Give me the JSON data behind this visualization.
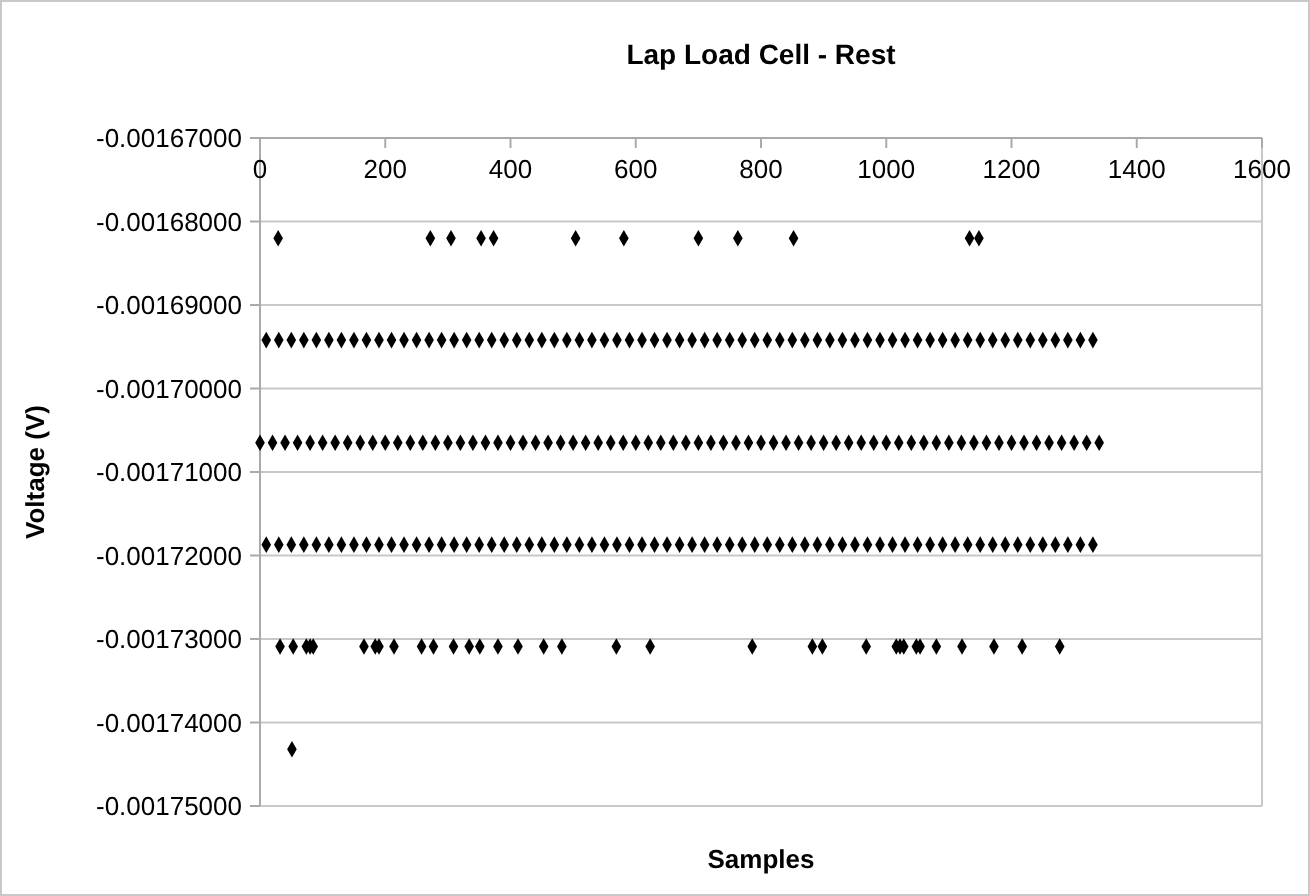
{
  "chart_data": {
    "type": "scatter",
    "title": "Lap Load Cell - Rest",
    "xlabel": "Samples",
    "ylabel": "Voltage (V)",
    "marker": "diamond",
    "grid": "y",
    "xlim": [
      0,
      1600
    ],
    "xticks": [
      0,
      200,
      400,
      600,
      800,
      1000,
      1200,
      1400,
      1600
    ],
    "ylim": [
      -0.00175,
      -0.00167
    ],
    "yticks": [
      {
        "value": -0.00167,
        "label": "-0.00167000"
      },
      {
        "value": -0.00168,
        "label": "-0.00168000"
      },
      {
        "value": -0.00169,
        "label": "-0.00169000"
      },
      {
        "value": -0.0017,
        "label": "-0.00170000"
      },
      {
        "value": -0.00171,
        "label": "-0.00171000"
      },
      {
        "value": -0.00172,
        "label": "-0.00172000"
      },
      {
        "value": -0.00173,
        "label": "-0.00173000"
      },
      {
        "value": -0.00174,
        "label": "-0.00174000"
      },
      {
        "value": -0.00175,
        "label": "-0.00175000"
      }
    ],
    "series": [
      {
        "color": "#000000",
        "x": [
          29,
          272,
          305,
          353,
          373,
          504,
          581,
          700,
          763,
          852,
          1133,
          1148
        ],
        "values": [
          -0.001682,
          -0.001682,
          -0.001682,
          -0.001682,
          -0.001682,
          -0.001682,
          -0.001682,
          -0.001682,
          -0.001682,
          -0.001682,
          -0.001682,
          -0.001682
        ]
      },
      {
        "color": "#000000",
        "x": [
          10,
          30,
          50,
          70,
          90,
          110,
          130,
          150,
          170,
          190,
          210,
          230,
          250,
          270,
          290,
          310,
          330,
          350,
          370,
          390,
          410,
          430,
          450,
          470,
          490,
          510,
          530,
          550,
          570,
          590,
          610,
          630,
          650,
          670,
          690,
          710,
          730,
          750,
          770,
          790,
          810,
          830,
          850,
          870,
          890,
          910,
          930,
          950,
          970,
          990,
          1010,
          1030,
          1050,
          1070,
          1090,
          1110,
          1130,
          1150,
          1170,
          1190,
          1210,
          1230,
          1250,
          1270,
          1290,
          1310,
          1330
        ],
        "values": [
          -0.0016942,
          -0.0016942,
          -0.0016942,
          -0.0016942,
          -0.0016942,
          -0.0016942,
          -0.0016942,
          -0.0016942,
          -0.0016942,
          -0.0016942,
          -0.0016942,
          -0.0016942,
          -0.0016942,
          -0.0016942,
          -0.0016942,
          -0.0016942,
          -0.0016942,
          -0.0016942,
          -0.0016942,
          -0.0016942,
          -0.0016942,
          -0.0016942,
          -0.0016942,
          -0.0016942,
          -0.0016942,
          -0.0016942,
          -0.0016942,
          -0.0016942,
          -0.0016942,
          -0.0016942,
          -0.0016942,
          -0.0016942,
          -0.0016942,
          -0.0016942,
          -0.0016942,
          -0.0016942,
          -0.0016942,
          -0.0016942,
          -0.0016942,
          -0.0016942,
          -0.0016942,
          -0.0016942,
          -0.0016942,
          -0.0016942,
          -0.0016942,
          -0.0016942,
          -0.0016942,
          -0.0016942,
          -0.0016942,
          -0.0016942,
          -0.0016942,
          -0.0016942,
          -0.0016942,
          -0.0016942,
          -0.0016942,
          -0.0016942,
          -0.0016942,
          -0.0016942,
          -0.0016942,
          -0.0016942,
          -0.0016942,
          -0.0016942,
          -0.0016942,
          -0.0016942,
          -0.0016942,
          -0.0016942,
          -0.0016942
        ]
      },
      {
        "color": "#000000",
        "x": [
          0,
          20,
          40,
          60,
          80,
          100,
          120,
          140,
          160,
          180,
          200,
          220,
          240,
          260,
          280,
          300,
          320,
          340,
          360,
          380,
          400,
          420,
          440,
          460,
          480,
          500,
          520,
          540,
          560,
          580,
          600,
          620,
          640,
          660,
          680,
          700,
          720,
          740,
          760,
          780,
          800,
          820,
          840,
          860,
          880,
          900,
          920,
          940,
          960,
          980,
          1000,
          1020,
          1040,
          1060,
          1080,
          1100,
          1120,
          1140,
          1160,
          1180,
          1200,
          1220,
          1240,
          1260,
          1280,
          1300,
          1320,
          1340
        ],
        "values": [
          -0.0017065,
          -0.0017065,
          -0.0017065,
          -0.0017065,
          -0.0017065,
          -0.0017065,
          -0.0017065,
          -0.0017065,
          -0.0017065,
          -0.0017065,
          -0.0017065,
          -0.0017065,
          -0.0017065,
          -0.0017065,
          -0.0017065,
          -0.0017065,
          -0.0017065,
          -0.0017065,
          -0.0017065,
          -0.0017065,
          -0.0017065,
          -0.0017065,
          -0.0017065,
          -0.0017065,
          -0.0017065,
          -0.0017065,
          -0.0017065,
          -0.0017065,
          -0.0017065,
          -0.0017065,
          -0.0017065,
          -0.0017065,
          -0.0017065,
          -0.0017065,
          -0.0017065,
          -0.0017065,
          -0.0017065,
          -0.0017065,
          -0.0017065,
          -0.0017065,
          -0.0017065,
          -0.0017065,
          -0.0017065,
          -0.0017065,
          -0.0017065,
          -0.0017065,
          -0.0017065,
          -0.0017065,
          -0.0017065,
          -0.0017065,
          -0.0017065,
          -0.0017065,
          -0.0017065,
          -0.0017065,
          -0.0017065,
          -0.0017065,
          -0.0017065,
          -0.0017065,
          -0.0017065,
          -0.0017065,
          -0.0017065,
          -0.0017065,
          -0.0017065,
          -0.0017065,
          -0.0017065,
          -0.0017065,
          -0.0017065,
          -0.0017065
        ]
      },
      {
        "color": "#000000",
        "x": [
          10,
          30,
          50,
          70,
          90,
          110,
          130,
          150,
          170,
          190,
          210,
          230,
          250,
          270,
          290,
          310,
          330,
          350,
          370,
          390,
          410,
          430,
          450,
          470,
          490,
          510,
          530,
          550,
          570,
          590,
          610,
          630,
          650,
          670,
          690,
          710,
          730,
          750,
          770,
          790,
          810,
          830,
          850,
          870,
          890,
          910,
          930,
          950,
          970,
          990,
          1010,
          1030,
          1050,
          1070,
          1090,
          1110,
          1130,
          1150,
          1170,
          1190,
          1210,
          1230,
          1250,
          1270,
          1290,
          1310,
          1330
        ],
        "values": [
          -0.0017187,
          -0.0017187,
          -0.0017187,
          -0.0017187,
          -0.0017187,
          -0.0017187,
          -0.0017187,
          -0.0017187,
          -0.0017187,
          -0.0017187,
          -0.0017187,
          -0.0017187,
          -0.0017187,
          -0.0017187,
          -0.0017187,
          -0.0017187,
          -0.0017187,
          -0.0017187,
          -0.0017187,
          -0.0017187,
          -0.0017187,
          -0.0017187,
          -0.0017187,
          -0.0017187,
          -0.0017187,
          -0.0017187,
          -0.0017187,
          -0.0017187,
          -0.0017187,
          -0.0017187,
          -0.0017187,
          -0.0017187,
          -0.0017187,
          -0.0017187,
          -0.0017187,
          -0.0017187,
          -0.0017187,
          -0.0017187,
          -0.0017187,
          -0.0017187,
          -0.0017187,
          -0.0017187,
          -0.0017187,
          -0.0017187,
          -0.0017187,
          -0.0017187,
          -0.0017187,
          -0.0017187,
          -0.0017187,
          -0.0017187,
          -0.0017187,
          -0.0017187,
          -0.0017187,
          -0.0017187,
          -0.0017187,
          -0.0017187,
          -0.0017187,
          -0.0017187,
          -0.0017187,
          -0.0017187,
          -0.0017187,
          -0.0017187,
          -0.0017187,
          -0.0017187,
          -0.0017187,
          -0.0017187,
          -0.0017187
        ]
      },
      {
        "color": "#000000",
        "x": [
          32,
          53,
          74,
          80,
          85,
          166,
          184,
          190,
          214,
          258,
          277,
          309,
          334,
          351,
          380,
          412,
          453,
          482,
          569,
          623,
          786,
          882,
          898,
          968,
          1016,
          1022,
          1028,
          1048,
          1054,
          1080,
          1121,
          1172,
          1217,
          1277
        ],
        "values": [
          -0.0017309,
          -0.0017309,
          -0.0017309,
          -0.0017309,
          -0.0017309,
          -0.0017309,
          -0.0017309,
          -0.0017309,
          -0.0017309,
          -0.0017309,
          -0.0017309,
          -0.0017309,
          -0.0017309,
          -0.0017309,
          -0.0017309,
          -0.0017309,
          -0.0017309,
          -0.0017309,
          -0.0017309,
          -0.0017309,
          -0.0017309,
          -0.0017309,
          -0.0017309,
          -0.0017309,
          -0.0017309,
          -0.0017309,
          -0.0017309,
          -0.0017309,
          -0.0017309,
          -0.0017309,
          -0.0017309,
          -0.0017309,
          -0.0017309,
          -0.0017309
        ]
      },
      {
        "color": "#000000",
        "x": [
          51
        ],
        "values": [
          -0.0017432
        ]
      }
    ]
  }
}
